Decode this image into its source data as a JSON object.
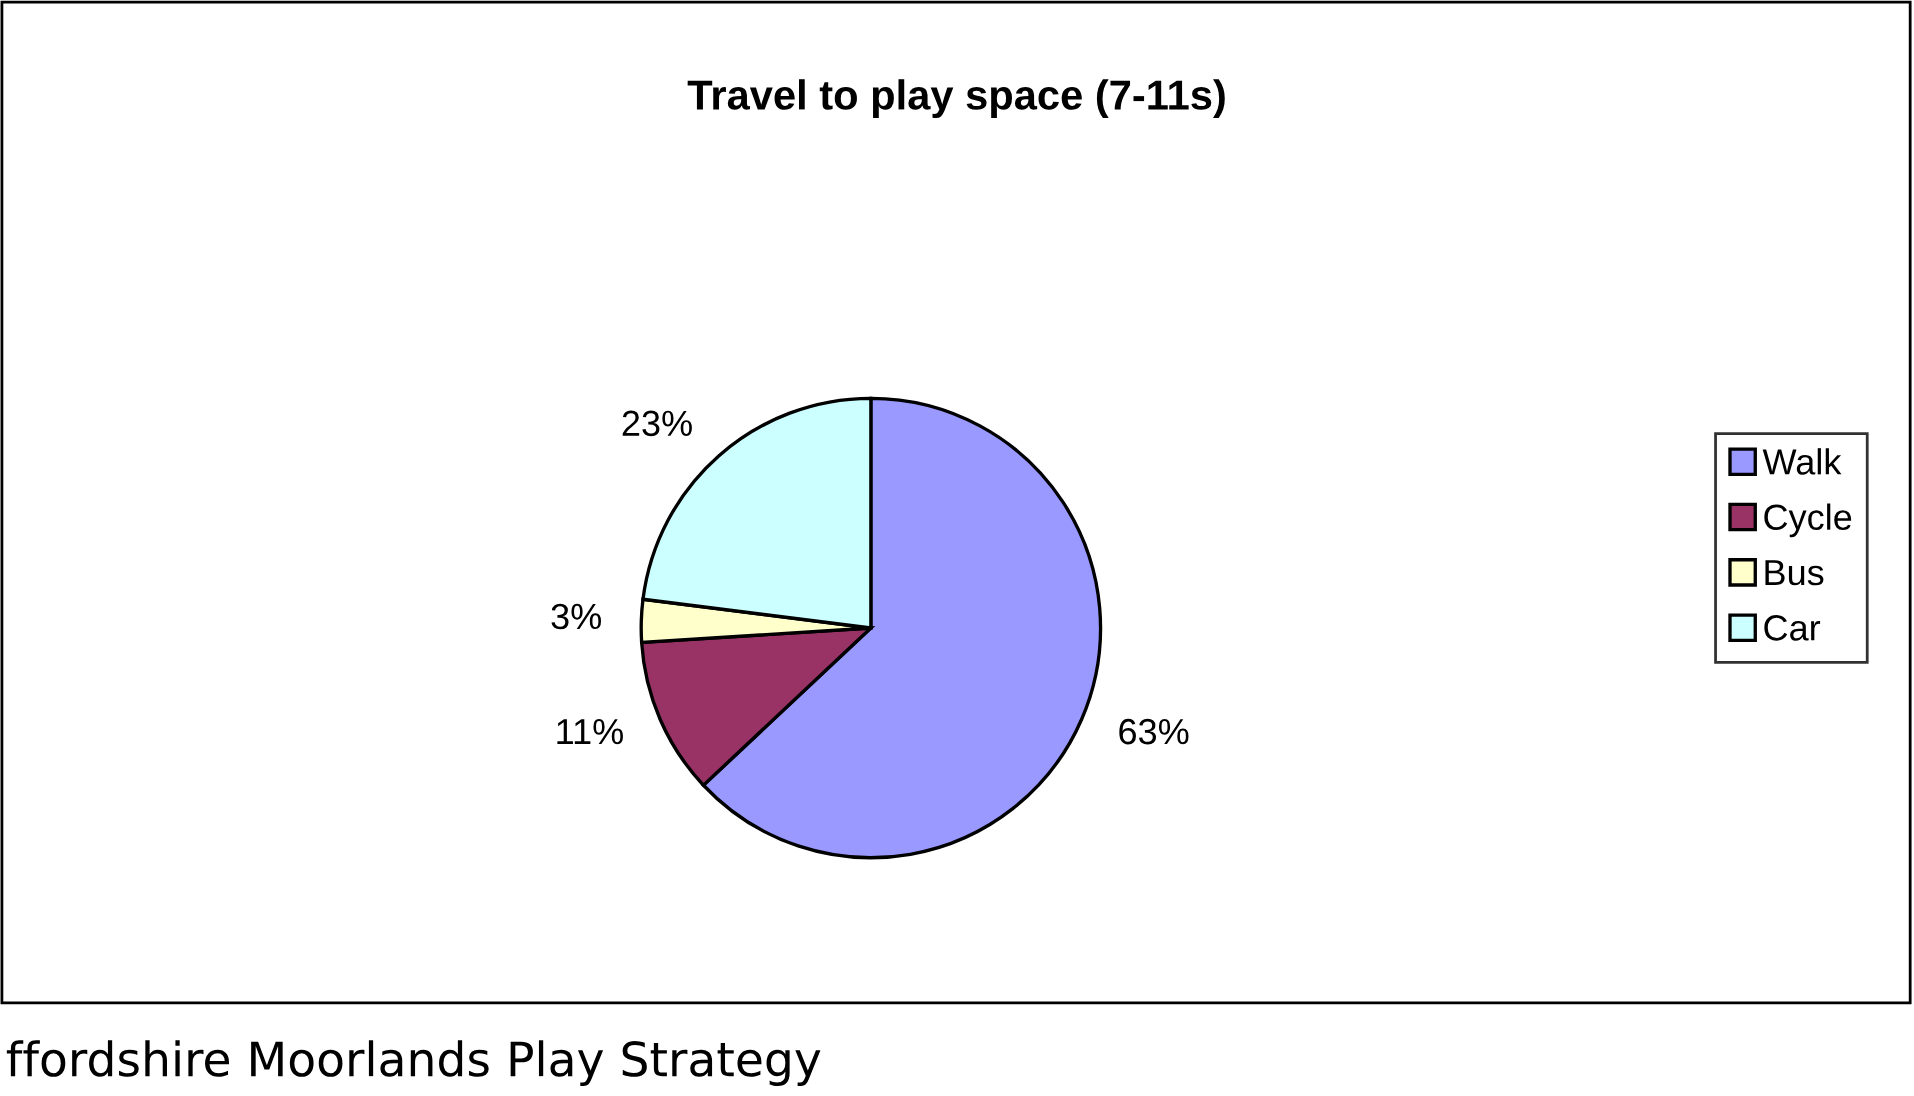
{
  "chart_data": {
    "type": "pie",
    "title": "Travel to play space (7-11s)",
    "categories": [
      "Walk",
      "Cycle",
      "Bus",
      "Car"
    ],
    "values": [
      63,
      11,
      3,
      23
    ],
    "colors": [
      "#9999ff",
      "#993366",
      "#ffffcc",
      "#ccffff"
    ],
    "value_labels": [
      "63%",
      "11%",
      "3%",
      "23%"
    ],
    "legend": "right",
    "annotations": [
      "ffordshire Moorlands Play Strategy"
    ]
  }
}
